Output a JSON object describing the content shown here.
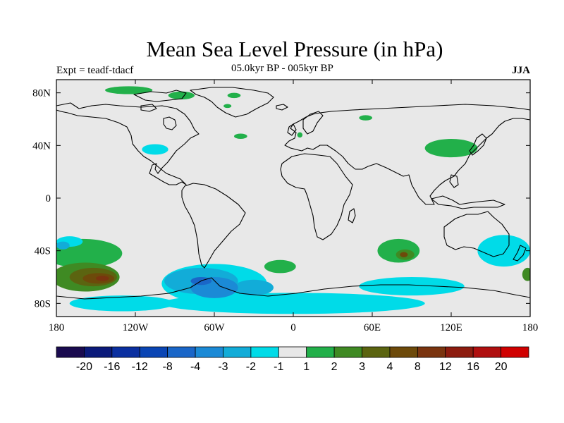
{
  "title": "Mean Sea Level Pressure (in hPa)",
  "experiment": "Expt = teadf-tdacf",
  "period": "05.0kyr BP - 005kyr BP",
  "season": "JJA",
  "map": {
    "lon_range": [
      -180,
      180
    ],
    "lat_range": [
      -90,
      90
    ],
    "background_color": "#e8e8e8",
    "lon_ticks": [
      {
        "value": -180,
        "label": "180"
      },
      {
        "value": -120,
        "label": "120W"
      },
      {
        "value": -60,
        "label": "60W"
      },
      {
        "value": 0,
        "label": "0"
      },
      {
        "value": 60,
        "label": "60E"
      },
      {
        "value": 120,
        "label": "120E"
      },
      {
        "value": 180,
        "label": "180"
      }
    ],
    "lat_ticks": [
      {
        "value": 80,
        "label": "80N"
      },
      {
        "value": 40,
        "label": "40N"
      },
      {
        "value": 0,
        "label": "0"
      },
      {
        "value": -40,
        "label": "40S"
      },
      {
        "value": -80,
        "label": "80S"
      }
    ]
  },
  "colorbar": {
    "colors": [
      "#1a0b4f",
      "#0b1a7a",
      "#0a2fa0",
      "#0a45b4",
      "#1a66c8",
      "#1b8ad6",
      "#12acd8",
      "#00dbe8",
      "#e8e8e8",
      "#22b04a",
      "#3f8a23",
      "#5b6410",
      "#6d4a0a",
      "#7a340f",
      "#8d1c0f",
      "#b00f0f",
      "#d00000"
    ],
    "labels": [
      "-20",
      "-16",
      "-12",
      "-8",
      "-4",
      "-3",
      "-2",
      "-1",
      "1",
      "2",
      "3",
      "4",
      "8",
      "12",
      "16",
      "20"
    ]
  },
  "anomaly_regions": [
    {
      "level": 1,
      "color": "#22b04a",
      "blobs": [
        [
          -125,
          82,
          18,
          3
        ],
        [
          -85,
          78,
          10,
          3
        ],
        [
          -45,
          78,
          5,
          2
        ],
        [
          -50,
          70,
          3,
          1.5
        ],
        [
          5,
          48,
          2,
          2
        ],
        [
          -40,
          47,
          5,
          2
        ],
        [
          120,
          38,
          20,
          7
        ],
        [
          55,
          61,
          5,
          2
        ],
        [
          -160,
          -42,
          30,
          11
        ],
        [
          -10,
          -52,
          12,
          5
        ],
        [
          80,
          -40,
          16,
          9
        ]
      ]
    },
    {
      "level": -1,
      "color": "#00dbe8",
      "blobs": [
        [
          -105,
          37,
          10,
          4
        ],
        [
          -170,
          -33,
          10,
          4
        ],
        [
          160,
          -40,
          20,
          12
        ],
        [
          -60,
          -65,
          40,
          15
        ],
        [
          0,
          -80,
          100,
          8
        ],
        [
          90,
          -67,
          40,
          7
        ],
        [
          -130,
          -80,
          40,
          6
        ]
      ]
    },
    {
      "level": -2,
      "color": "#12acd8",
      "blobs": [
        [
          -175,
          -36,
          5,
          3
        ],
        [
          -70,
          -63,
          28,
          10
        ],
        [
          -30,
          -68,
          15,
          6
        ]
      ]
    },
    {
      "level": -3,
      "color": "#1b8ad6",
      "blobs": [
        [
          -60,
          -68,
          18,
          8
        ]
      ]
    },
    {
      "level": -4,
      "color": "#1a66c8",
      "blobs": [
        [
          -70,
          -63,
          8,
          3
        ]
      ]
    },
    {
      "level": 2,
      "color": "#3f8a23",
      "blobs": [
        [
          -158,
          -60,
          26,
          11
        ],
        [
          85,
          -43,
          7,
          4
        ],
        [
          178,
          -58,
          4,
          5
        ]
      ]
    },
    {
      "level": 3,
      "color": "#5b6410",
      "blobs": [
        [
          -152,
          -60,
          18,
          7
        ]
      ]
    },
    {
      "level": 4,
      "color": "#6d4a0a",
      "blobs": [
        [
          -148,
          -61,
          12,
          4
        ],
        [
          84,
          -43,
          3,
          2
        ]
      ]
    },
    {
      "level": 8,
      "color": "#7a340f",
      "blobs": [
        [
          -145,
          -61,
          5,
          2
        ]
      ]
    }
  ]
}
